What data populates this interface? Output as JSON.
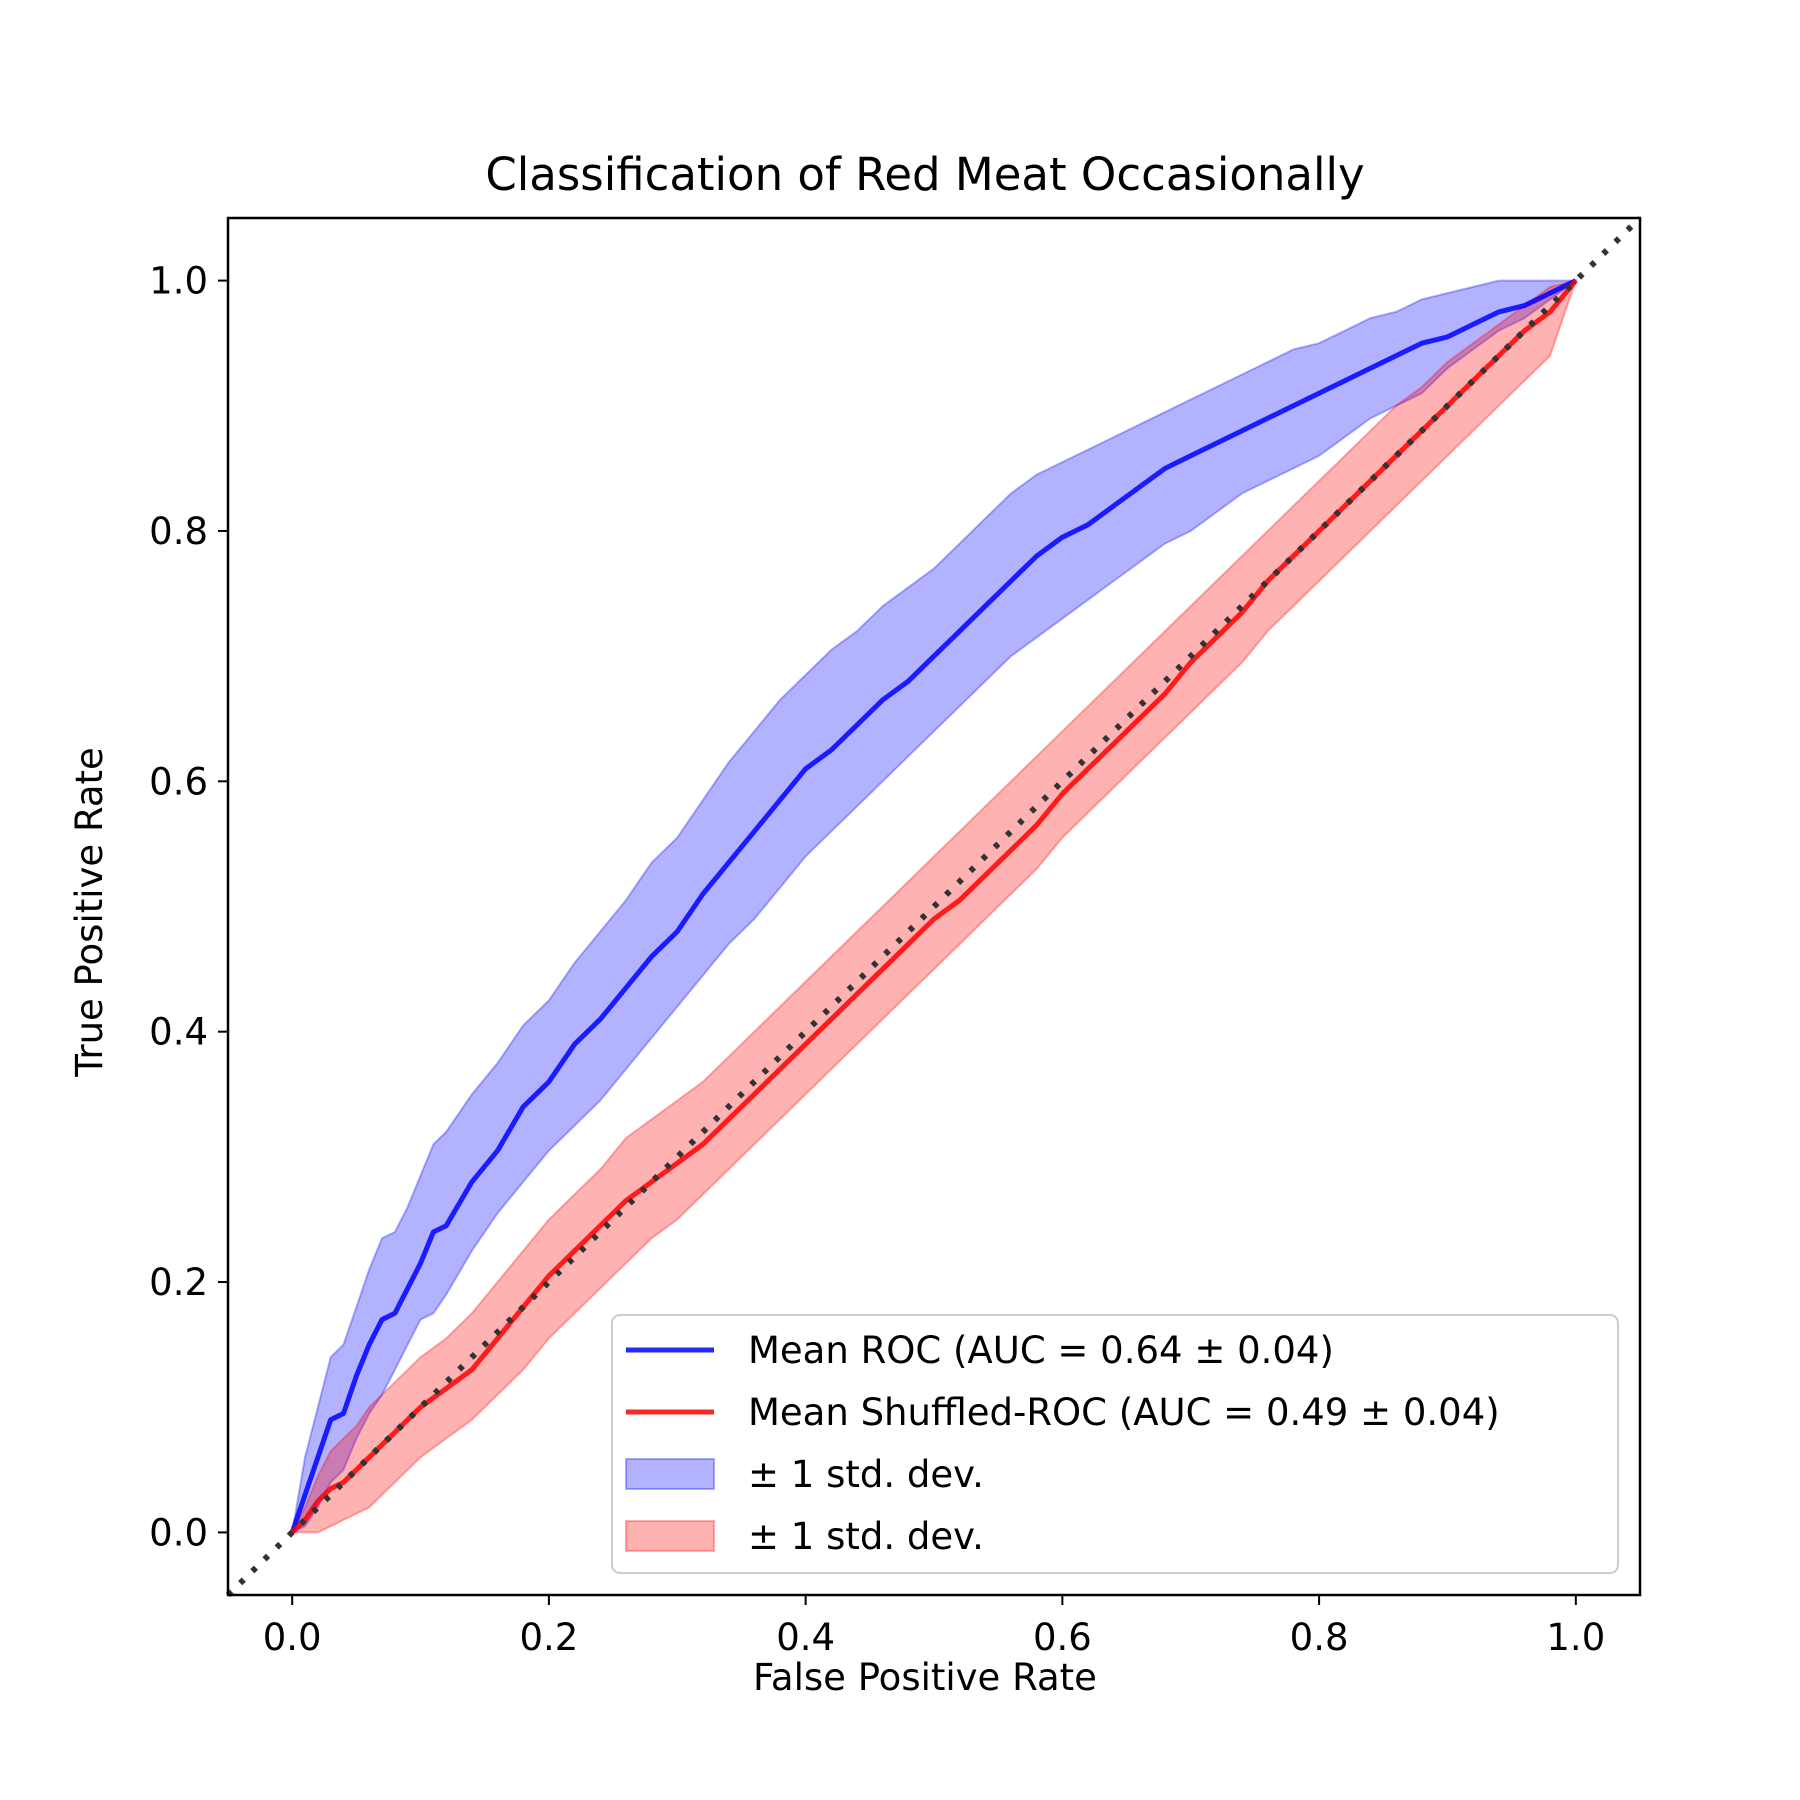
{
  "chart_data": {
    "type": "line",
    "title": "Classification of Red Meat Occasionally",
    "xlabel": "False Positive Rate",
    "ylabel": "True Positive Rate",
    "xlim": [
      -0.05,
      1.05
    ],
    "ylim": [
      -0.05,
      1.05
    ],
    "xticks": [
      "0.0",
      "0.2",
      "0.4",
      "0.6",
      "0.8",
      "1.0"
    ],
    "yticks": [
      "0.0",
      "0.2",
      "0.4",
      "0.6",
      "0.8",
      "1.0"
    ],
    "grid": false,
    "legend_position": "lower-right",
    "series": [
      {
        "name": "Mean ROC (AUC = 0.64 ± 0.04)",
        "color": "#0000ff",
        "x": [
          0.0,
          0.01,
          0.02,
          0.03,
          0.04,
          0.05,
          0.06,
          0.07,
          0.08,
          0.09,
          0.1,
          0.11,
          0.12,
          0.14,
          0.16,
          0.18,
          0.2,
          0.22,
          0.24,
          0.26,
          0.28,
          0.3,
          0.32,
          0.34,
          0.36,
          0.38,
          0.4,
          0.42,
          0.44,
          0.46,
          0.48,
          0.5,
          0.52,
          0.54,
          0.56,
          0.58,
          0.6,
          0.62,
          0.64,
          0.66,
          0.68,
          0.7,
          0.72,
          0.74,
          0.76,
          0.78,
          0.8,
          0.82,
          0.84,
          0.86,
          0.88,
          0.9,
          0.92,
          0.94,
          0.96,
          0.98,
          1.0
        ],
        "y": [
          0.0,
          0.03,
          0.06,
          0.09,
          0.095,
          0.125,
          0.15,
          0.17,
          0.175,
          0.195,
          0.215,
          0.24,
          0.245,
          0.28,
          0.305,
          0.34,
          0.36,
          0.39,
          0.41,
          0.435,
          0.46,
          0.48,
          0.51,
          0.535,
          0.56,
          0.585,
          0.61,
          0.625,
          0.645,
          0.665,
          0.68,
          0.7,
          0.72,
          0.74,
          0.76,
          0.78,
          0.795,
          0.805,
          0.82,
          0.835,
          0.85,
          0.86,
          0.87,
          0.88,
          0.89,
          0.9,
          0.91,
          0.92,
          0.93,
          0.94,
          0.95,
          0.955,
          0.965,
          0.975,
          0.98,
          0.99,
          1.0
        ],
        "lower": [
          0.0,
          0.005,
          0.02,
          0.04,
          0.05,
          0.075,
          0.095,
          0.11,
          0.13,
          0.15,
          0.17,
          0.175,
          0.19,
          0.225,
          0.255,
          0.28,
          0.305,
          0.325,
          0.345,
          0.37,
          0.395,
          0.42,
          0.445,
          0.47,
          0.49,
          0.515,
          0.54,
          0.56,
          0.58,
          0.6,
          0.62,
          0.64,
          0.66,
          0.68,
          0.7,
          0.715,
          0.73,
          0.745,
          0.76,
          0.775,
          0.79,
          0.8,
          0.815,
          0.83,
          0.84,
          0.85,
          0.86,
          0.875,
          0.89,
          0.9,
          0.91,
          0.93,
          0.945,
          0.96,
          0.97,
          0.985,
          1.0
        ],
        "upper": [
          0.0,
          0.06,
          0.1,
          0.14,
          0.15,
          0.18,
          0.21,
          0.235,
          0.24,
          0.26,
          0.285,
          0.31,
          0.32,
          0.35,
          0.375,
          0.405,
          0.425,
          0.455,
          0.48,
          0.505,
          0.535,
          0.555,
          0.585,
          0.615,
          0.64,
          0.665,
          0.685,
          0.705,
          0.72,
          0.74,
          0.755,
          0.77,
          0.79,
          0.81,
          0.83,
          0.845,
          0.855,
          0.865,
          0.875,
          0.885,
          0.895,
          0.905,
          0.915,
          0.925,
          0.935,
          0.945,
          0.95,
          0.96,
          0.97,
          0.975,
          0.985,
          0.99,
          0.995,
          1.0,
          1.0,
          1.0,
          1.0
        ]
      },
      {
        "name": "Mean Shuffled-ROC (AUC = 0.49 ± 0.04)",
        "color": "#ff0000",
        "x": [
          0.0,
          0.01,
          0.02,
          0.03,
          0.04,
          0.05,
          0.06,
          0.07,
          0.08,
          0.09,
          0.1,
          0.12,
          0.14,
          0.16,
          0.18,
          0.2,
          0.22,
          0.24,
          0.26,
          0.28,
          0.3,
          0.32,
          0.34,
          0.36,
          0.38,
          0.4,
          0.42,
          0.44,
          0.46,
          0.48,
          0.5,
          0.52,
          0.54,
          0.56,
          0.58,
          0.6,
          0.62,
          0.64,
          0.66,
          0.68,
          0.7,
          0.72,
          0.74,
          0.76,
          0.78,
          0.8,
          0.82,
          0.84,
          0.86,
          0.88,
          0.9,
          0.92,
          0.94,
          0.96,
          0.98,
          1.0
        ],
        "y": [
          0.0,
          0.01,
          0.025,
          0.035,
          0.04,
          0.05,
          0.06,
          0.07,
          0.08,
          0.09,
          0.1,
          0.115,
          0.13,
          0.155,
          0.18,
          0.205,
          0.225,
          0.245,
          0.265,
          0.28,
          0.295,
          0.31,
          0.33,
          0.35,
          0.37,
          0.39,
          0.41,
          0.43,
          0.45,
          0.47,
          0.49,
          0.505,
          0.525,
          0.545,
          0.565,
          0.59,
          0.61,
          0.63,
          0.65,
          0.67,
          0.695,
          0.715,
          0.735,
          0.76,
          0.78,
          0.8,
          0.82,
          0.84,
          0.86,
          0.88,
          0.9,
          0.92,
          0.94,
          0.96,
          0.975,
          1.0
        ],
        "lower": [
          0.0,
          0.0,
          0.0,
          0.005,
          0.01,
          0.015,
          0.02,
          0.03,
          0.04,
          0.05,
          0.06,
          0.075,
          0.09,
          0.11,
          0.13,
          0.155,
          0.175,
          0.195,
          0.215,
          0.235,
          0.25,
          0.27,
          0.29,
          0.31,
          0.33,
          0.35,
          0.37,
          0.39,
          0.41,
          0.43,
          0.45,
          0.47,
          0.49,
          0.51,
          0.53,
          0.555,
          0.575,
          0.595,
          0.615,
          0.635,
          0.655,
          0.675,
          0.695,
          0.72,
          0.74,
          0.76,
          0.78,
          0.8,
          0.82,
          0.84,
          0.86,
          0.88,
          0.9,
          0.92,
          0.94,
          1.0
        ],
        "upper": [
          0.0,
          0.02,
          0.045,
          0.065,
          0.075,
          0.085,
          0.1,
          0.11,
          0.12,
          0.13,
          0.14,
          0.155,
          0.175,
          0.2,
          0.225,
          0.25,
          0.27,
          0.29,
          0.315,
          0.33,
          0.345,
          0.36,
          0.38,
          0.4,
          0.42,
          0.44,
          0.46,
          0.48,
          0.5,
          0.52,
          0.54,
          0.56,
          0.58,
          0.6,
          0.62,
          0.64,
          0.66,
          0.68,
          0.7,
          0.72,
          0.74,
          0.76,
          0.78,
          0.8,
          0.82,
          0.84,
          0.86,
          0.88,
          0.9,
          0.915,
          0.935,
          0.95,
          0.965,
          0.98,
          0.995,
          1.0
        ]
      }
    ],
    "diagonal": {
      "x": [
        -0.05,
        1.05
      ],
      "y": [
        -0.05,
        1.05
      ],
      "color": "#333333",
      "style": "dotted"
    },
    "legend": [
      {
        "label": "Mean ROC (AUC = 0.64 ± 0.04)",
        "kind": "line",
        "color": "#0000ff"
      },
      {
        "label": "Mean Shuffled-ROC (AUC = 0.49 ± 0.04)",
        "kind": "line",
        "color": "#ff0000"
      },
      {
        "label": "± 1 std. dev.",
        "kind": "patch",
        "color": "#0000ff"
      },
      {
        "label": "± 1 std. dev.",
        "kind": "patch",
        "color": "#ff0000"
      }
    ]
  }
}
